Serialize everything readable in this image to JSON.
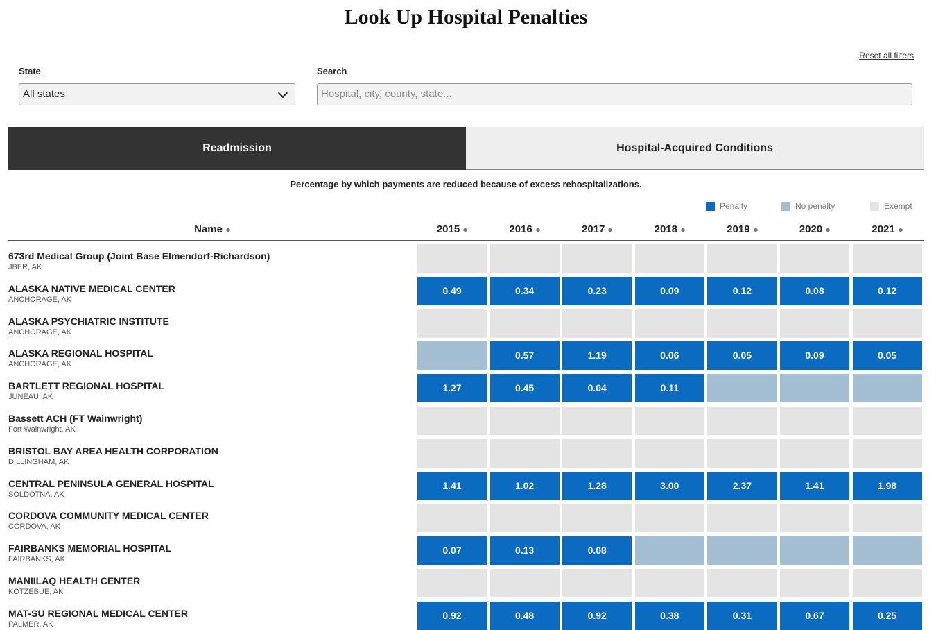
{
  "header": {
    "title": "Look Up Hospital Penalties",
    "reset": "Reset all filters"
  },
  "filters": {
    "state_label": "State",
    "state_value": "All states",
    "search_label": "Search",
    "search_placeholder": "Hospital, city, county, state..."
  },
  "tabs": {
    "items": [
      "Readmission",
      "Hospital-Acquired Conditions"
    ],
    "active": 0
  },
  "description": "Percentage by which payments are reduced because of excess rehospitalizations.",
  "legend": [
    {
      "key": "penalty",
      "label": "Penalty",
      "color": "#0a6bc0"
    },
    {
      "key": "none",
      "label": "No penalty",
      "color": "#a4bfd4"
    },
    {
      "key": "exempt",
      "label": "Exempt",
      "color": "#e4e4e4"
    }
  ],
  "table": {
    "columns": [
      "Name",
      "2015",
      "2016",
      "2017",
      "2018",
      "2019",
      "2020",
      "2021"
    ],
    "rows": [
      {
        "name": "673rd Medical Group (Joint Base Elmendorf-Richardson)",
        "location": "JBER, AK",
        "status": [
          "exempt",
          "exempt",
          "exempt",
          "exempt",
          "exempt",
          "exempt",
          "exempt"
        ],
        "values": [
          null,
          null,
          null,
          null,
          null,
          null,
          null
        ]
      },
      {
        "name": "ALASKA NATIVE MEDICAL CENTER",
        "location": "ANCHORAGE, AK",
        "status": [
          "penalty",
          "penalty",
          "penalty",
          "penalty",
          "penalty",
          "penalty",
          "penalty"
        ],
        "values": [
          "0.49",
          "0.34",
          "0.23",
          "0.09",
          "0.12",
          "0.08",
          "0.12"
        ]
      },
      {
        "name": "ALASKA PSYCHIATRIC INSTITUTE",
        "location": "ANCHORAGE, AK",
        "status": [
          "exempt",
          "exempt",
          "exempt",
          "exempt",
          "exempt",
          "exempt",
          "exempt"
        ],
        "values": [
          null,
          null,
          null,
          null,
          null,
          null,
          null
        ]
      },
      {
        "name": "ALASKA REGIONAL HOSPITAL",
        "location": "ANCHORAGE, AK",
        "status": [
          "none",
          "penalty",
          "penalty",
          "penalty",
          "penalty",
          "penalty",
          "penalty"
        ],
        "values": [
          null,
          "0.57",
          "1.19",
          "0.06",
          "0.05",
          "0.09",
          "0.05"
        ]
      },
      {
        "name": "BARTLETT REGIONAL HOSPITAL",
        "location": "JUNEAU, AK",
        "status": [
          "penalty",
          "penalty",
          "penalty",
          "penalty",
          "none",
          "none",
          "none"
        ],
        "values": [
          "1.27",
          "0.45",
          "0.04",
          "0.11",
          null,
          null,
          null
        ]
      },
      {
        "name": "Bassett ACH (FT Wainwright)",
        "location": "Fort Wainwright, AK",
        "status": [
          "exempt",
          "exempt",
          "exempt",
          "exempt",
          "exempt",
          "exempt",
          "exempt"
        ],
        "values": [
          null,
          null,
          null,
          null,
          null,
          null,
          null
        ]
      },
      {
        "name": "BRISTOL BAY AREA HEALTH CORPORATION",
        "location": "DILLINGHAM, AK",
        "status": [
          "exempt",
          "exempt",
          "exempt",
          "exempt",
          "exempt",
          "exempt",
          "exempt"
        ],
        "values": [
          null,
          null,
          null,
          null,
          null,
          null,
          null
        ]
      },
      {
        "name": "CENTRAL PENINSULA GENERAL HOSPITAL",
        "location": "SOLDOTNA, AK",
        "status": [
          "penalty",
          "penalty",
          "penalty",
          "penalty",
          "penalty",
          "penalty",
          "penalty"
        ],
        "values": [
          "1.41",
          "1.02",
          "1.28",
          "3.00",
          "2.37",
          "1.41",
          "1.98"
        ]
      },
      {
        "name": "CORDOVA COMMUNITY MEDICAL CENTER",
        "location": "CORDOVA, AK",
        "status": [
          "exempt",
          "exempt",
          "exempt",
          "exempt",
          "exempt",
          "exempt",
          "exempt"
        ],
        "values": [
          null,
          null,
          null,
          null,
          null,
          null,
          null
        ]
      },
      {
        "name": "FAIRBANKS MEMORIAL HOSPITAL",
        "location": "FAIRBANKS, AK",
        "status": [
          "penalty",
          "penalty",
          "penalty",
          "none",
          "none",
          "none",
          "none"
        ],
        "values": [
          "0.07",
          "0.13",
          "0.08",
          null,
          null,
          null,
          null
        ]
      },
      {
        "name": "MANIILAQ HEALTH CENTER",
        "location": "KOTZEBUE, AK",
        "status": [
          "exempt",
          "exempt",
          "exempt",
          "exempt",
          "exempt",
          "exempt",
          "exempt"
        ],
        "values": [
          null,
          null,
          null,
          null,
          null,
          null,
          null
        ]
      },
      {
        "name": "MAT-SU REGIONAL MEDICAL CENTER",
        "location": "PALMER, AK",
        "status": [
          "penalty",
          "penalty",
          "penalty",
          "penalty",
          "penalty",
          "penalty",
          "penalty"
        ],
        "values": [
          "0.92",
          "0.48",
          "0.92",
          "0.38",
          "0.31",
          "0.67",
          "0.25"
        ]
      }
    ]
  }
}
